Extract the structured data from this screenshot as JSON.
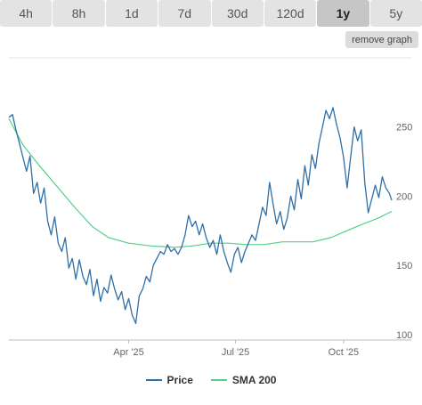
{
  "timeframes": {
    "tabs": [
      {
        "label": "4h"
      },
      {
        "label": "8h"
      },
      {
        "label": "1d"
      },
      {
        "label": "7d"
      },
      {
        "label": "30d"
      },
      {
        "label": "120d"
      },
      {
        "label": "1y"
      },
      {
        "label": "5y"
      }
    ],
    "active": "1y"
  },
  "controls": {
    "remove_graph_label": "remove graph"
  },
  "colors": {
    "price": "#2f6fa8",
    "sma": "#50d08a",
    "active_tab": "#c6c6c6",
    "tab": "#e3e3e3"
  },
  "chart_data": {
    "type": "line",
    "title": "",
    "xlabel": "",
    "ylabel": "",
    "x_ticks": [
      {
        "label": "Apr '25",
        "date": "2025-04-01"
      },
      {
        "label": "Jul '25",
        "date": "2025-07-01"
      },
      {
        "label": "Oct '25",
        "date": "2025-10-01"
      }
    ],
    "y_ticks": [
      100,
      150,
      200,
      250
    ],
    "xlim": [
      "2024-12-20",
      "2025-11-11"
    ],
    "ylim": [
      96,
      300
    ],
    "grid": false,
    "y_axis_side": "right",
    "legend_position": "bottom",
    "series": [
      {
        "name": "Price",
        "color": "#2f6fa8",
        "points": [
          [
            "2024-12-20",
            257
          ],
          [
            "2024-12-23",
            259
          ],
          [
            "2024-12-26",
            248
          ],
          [
            "2024-12-29",
            238
          ],
          [
            "2025-01-01",
            228
          ],
          [
            "2025-01-04",
            218
          ],
          [
            "2025-01-07",
            229
          ],
          [
            "2025-01-10",
            202
          ],
          [
            "2025-01-13",
            210
          ],
          [
            "2025-01-16",
            195
          ],
          [
            "2025-01-19",
            206
          ],
          [
            "2025-01-22",
            182
          ],
          [
            "2025-01-25",
            172
          ],
          [
            "2025-01-28",
            185
          ],
          [
            "2025-01-31",
            166
          ],
          [
            "2025-02-03",
            160
          ],
          [
            "2025-02-06",
            170
          ],
          [
            "2025-02-09",
            148
          ],
          [
            "2025-02-12",
            155
          ],
          [
            "2025-02-15",
            140
          ],
          [
            "2025-02-18",
            154
          ],
          [
            "2025-02-21",
            142
          ],
          [
            "2025-02-24",
            136
          ],
          [
            "2025-02-27",
            147
          ],
          [
            "2025-03-02",
            128
          ],
          [
            "2025-03-05",
            140
          ],
          [
            "2025-03-08",
            124
          ],
          [
            "2025-03-11",
            134
          ],
          [
            "2025-03-14",
            130
          ],
          [
            "2025-03-17",
            143
          ],
          [
            "2025-03-20",
            133
          ],
          [
            "2025-03-23",
            125
          ],
          [
            "2025-03-26",
            131
          ],
          [
            "2025-03-29",
            118
          ],
          [
            "2025-04-01",
            126
          ],
          [
            "2025-04-04",
            114
          ],
          [
            "2025-04-07",
            108
          ],
          [
            "2025-04-10",
            128
          ],
          [
            "2025-04-13",
            133
          ],
          [
            "2025-04-16",
            142
          ],
          [
            "2025-04-19",
            138
          ],
          [
            "2025-04-22",
            150
          ],
          [
            "2025-04-25",
            155
          ],
          [
            "2025-04-28",
            160
          ],
          [
            "2025-05-01",
            158
          ],
          [
            "2025-05-04",
            165
          ],
          [
            "2025-05-07",
            160
          ],
          [
            "2025-05-10",
            162
          ],
          [
            "2025-05-13",
            158
          ],
          [
            "2025-05-16",
            163
          ],
          [
            "2025-05-19",
            172
          ],
          [
            "2025-05-22",
            186
          ],
          [
            "2025-05-25",
            178
          ],
          [
            "2025-05-28",
            182
          ],
          [
            "2025-05-31",
            172
          ],
          [
            "2025-06-03",
            180
          ],
          [
            "2025-06-06",
            170
          ],
          [
            "2025-06-09",
            163
          ],
          [
            "2025-06-12",
            168
          ],
          [
            "2025-06-15",
            158
          ],
          [
            "2025-06-18",
            172
          ],
          [
            "2025-06-21",
            160
          ],
          [
            "2025-06-24",
            152
          ],
          [
            "2025-06-27",
            145
          ],
          [
            "2025-06-30",
            158
          ],
          [
            "2025-07-03",
            163
          ],
          [
            "2025-07-06",
            152
          ],
          [
            "2025-07-09",
            160
          ],
          [
            "2025-07-12",
            166
          ],
          [
            "2025-07-15",
            172
          ],
          [
            "2025-07-18",
            168
          ],
          [
            "2025-07-21",
            180
          ],
          [
            "2025-07-24",
            192
          ],
          [
            "2025-07-27",
            186
          ],
          [
            "2025-07-30",
            210
          ],
          [
            "2025-08-02",
            194
          ],
          [
            "2025-08-05",
            180
          ],
          [
            "2025-08-08",
            189
          ],
          [
            "2025-08-11",
            176
          ],
          [
            "2025-08-14",
            184
          ],
          [
            "2025-08-17",
            200
          ],
          [
            "2025-08-20",
            190
          ],
          [
            "2025-08-23",
            212
          ],
          [
            "2025-08-26",
            198
          ],
          [
            "2025-08-29",
            222
          ],
          [
            "2025-09-01",
            208
          ],
          [
            "2025-09-04",
            230
          ],
          [
            "2025-09-07",
            220
          ],
          [
            "2025-09-10",
            238
          ],
          [
            "2025-09-13",
            250
          ],
          [
            "2025-09-16",
            262
          ],
          [
            "2025-09-19",
            256
          ],
          [
            "2025-09-22",
            264
          ],
          [
            "2025-09-25",
            252
          ],
          [
            "2025-09-28",
            242
          ],
          [
            "2025-10-01",
            228
          ],
          [
            "2025-10-04",
            206
          ],
          [
            "2025-10-07",
            228
          ],
          [
            "2025-10-10",
            250
          ],
          [
            "2025-10-13",
            240
          ],
          [
            "2025-10-16",
            248
          ],
          [
            "2025-10-19",
            210
          ],
          [
            "2025-10-22",
            188
          ],
          [
            "2025-10-25",
            198
          ],
          [
            "2025-10-28",
            208
          ],
          [
            "2025-10-31",
            199
          ],
          [
            "2025-11-03",
            214
          ],
          [
            "2025-11-06",
            206
          ],
          [
            "2025-11-09",
            202
          ],
          [
            "2025-11-11",
            197
          ]
        ]
      },
      {
        "name": "SMA 200",
        "color": "#50d08a",
        "points": [
          [
            "2024-12-20",
            256
          ],
          [
            "2025-01-01",
            237
          ],
          [
            "2025-01-15",
            222
          ],
          [
            "2025-02-01",
            205
          ],
          [
            "2025-02-15",
            191
          ],
          [
            "2025-03-01",
            178
          ],
          [
            "2025-03-15",
            170
          ],
          [
            "2025-04-01",
            166
          ],
          [
            "2025-04-20",
            164
          ],
          [
            "2025-05-10",
            163
          ],
          [
            "2025-05-25",
            164
          ],
          [
            "2025-06-10",
            166
          ],
          [
            "2025-06-25",
            166
          ],
          [
            "2025-07-10",
            165
          ],
          [
            "2025-07-25",
            165
          ],
          [
            "2025-08-10",
            167
          ],
          [
            "2025-08-25",
            167
          ],
          [
            "2025-09-05",
            167
          ],
          [
            "2025-09-20",
            170
          ],
          [
            "2025-10-01",
            174
          ],
          [
            "2025-10-15",
            179
          ],
          [
            "2025-10-30",
            184
          ],
          [
            "2025-11-11",
            189
          ]
        ]
      }
    ]
  }
}
